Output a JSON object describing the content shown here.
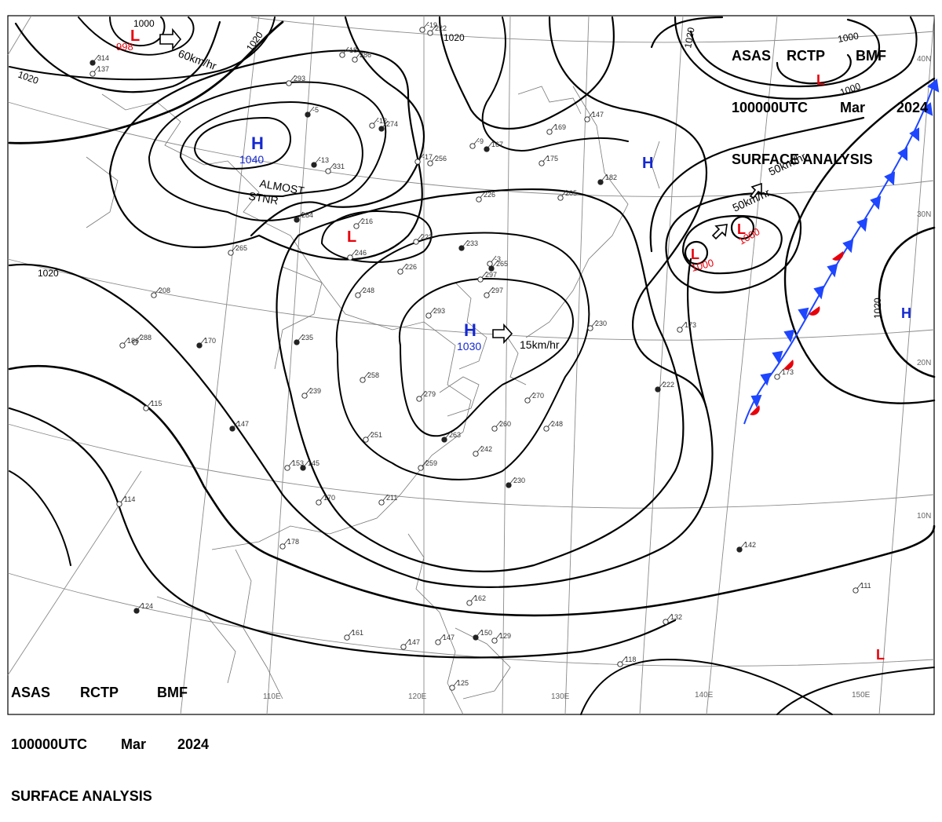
{
  "header": {
    "agency": "ASAS",
    "station": "RCTP",
    "source": "BMF",
    "time": "100000UTC",
    "month": "Mar",
    "year": "2024",
    "title": "SURFACE ANALYSIS"
  },
  "isobar_labels": [
    "1000",
    "1020",
    "1020",
    "1020",
    "1020",
    "1020",
    "1000",
    "1000",
    "1020"
  ],
  "pressure_centers": [
    {
      "type": "L",
      "value": "998",
      "color": "#e8000b"
    },
    {
      "type": "H",
      "value": "1040",
      "color": "#1428d2"
    },
    {
      "type": "L",
      "value": "",
      "color": "#e8000b"
    },
    {
      "type": "H",
      "value": "1030",
      "color": "#1428d2"
    },
    {
      "type": "H",
      "value": "",
      "color": "#1428d2"
    },
    {
      "type": "L",
      "value": "1000",
      "color": "#e8000b"
    },
    {
      "type": "L",
      "value": "1000",
      "color": "#e8000b"
    },
    {
      "type": "L",
      "value": "",
      "color": "#e8000b"
    },
    {
      "type": "H",
      "value": "",
      "color": "#1428d2"
    },
    {
      "type": "L",
      "value": "",
      "color": "#e8000b"
    }
  ],
  "motion_labels": [
    "60km/hr",
    "ALMOST",
    "STNR",
    "15km/hr",
    "50km/hr",
    "50km/hr"
  ],
  "longitude_labels": [
    "110E",
    "120E",
    "130E",
    "140E",
    "150E"
  ],
  "latitude_labels": [
    "40N",
    "30N",
    "20N",
    "10N"
  ],
  "station_numbers": [
    "314",
    "137",
    "293",
    "286",
    "274",
    "331",
    "256",
    "222",
    "167",
    "175",
    "169",
    "147",
    "182",
    "205",
    "226",
    "223",
    "233",
    "216",
    "246",
    "226",
    "265",
    "297",
    "297",
    "293",
    "170",
    "288",
    "208",
    "186",
    "235",
    "248",
    "258",
    "239",
    "147",
    "115",
    "279",
    "251",
    "263",
    "242",
    "259",
    "211",
    "230",
    "260",
    "270",
    "248",
    "222",
    "173",
    "230",
    "153",
    "145",
    "170",
    "178",
    "114",
    "124",
    "161",
    "147",
    "147",
    "150",
    "129",
    "162",
    "125",
    "142",
    "132",
    "111",
    "118",
    "284",
    "265",
    "-19",
    "-18",
    "-13",
    "-12",
    "-17",
    "-9",
    "-5",
    "-3",
    "173"
  ],
  "colors": {
    "isobar": "#000000",
    "high": "#1428d2",
    "low": "#e8000b",
    "cold_front": "#1e46ff",
    "warm_front": "#e8000b",
    "grid": "#888888"
  }
}
